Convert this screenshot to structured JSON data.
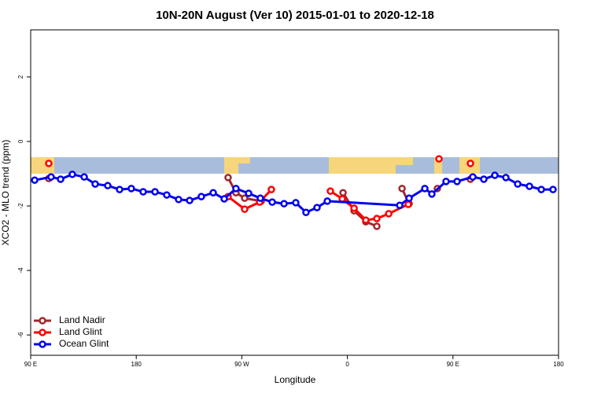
{
  "chart_data": {
    "type": "line",
    "title": "10N-20N August (Ver 10)   2015-01-01 to 2020-12-18",
    "x_label": "Longitude",
    "y_label": "XCO2 - MLO trend (ppm)",
    "xlim": [
      90,
      540
    ],
    "ylim": [
      -6.63,
      3.46
    ],
    "xticks": [
      {
        "value": 90,
        "label": "90 E"
      },
      180,
      {
        "value": 270,
        "label": "90 W"
      },
      {
        "value": 360,
        "label": "0"
      },
      {
        "value": 450,
        "label": "90 E"
      },
      180
    ],
    "yticks": [
      -6,
      -4,
      -2,
      0,
      2
    ],
    "legend": "bottom-left",
    "series": [
      {
        "name": "Land Nadir",
        "color": "#a0282d",
        "x": [
          105.4,
          null,
          258.3,
          265,
          272.4,
          286.5,
          null,
          356.3,
          365.7,
          375.7,
          385.1,
          null,
          406.6,
          412.6,
          null,
          436.7,
          null,
          464.9
        ],
        "values": [
          -1.15,
          null,
          -1.12,
          -1.59,
          -1.76,
          -1.85,
          null,
          -1.59,
          -2.15,
          -2.49,
          -2.63,
          null,
          -1.46,
          -1.93,
          null,
          -1.46,
          null,
          -1.17
        ]
      },
      {
        "name": "Land Glint",
        "color": "#ff0000",
        "x": [
          105.4,
          null,
          258.3,
          272.4,
          285.2,
          295.2,
          null,
          345.5,
          355.6,
          365.7,
          375.7,
          385.1,
          395.2,
          411.9,
          null,
          438.1,
          null,
          464.9
        ],
        "values": [
          -0.68,
          null,
          -1.71,
          -2.1,
          -1.88,
          -1.49,
          null,
          -1.54,
          -1.78,
          -2.07,
          -2.44,
          -2.39,
          -2.24,
          -1.95,
          null,
          -0.54,
          null,
          -0.68
        ]
      },
      {
        "name": "Ocean Glint",
        "color": "#0000ee",
        "x": [
          93.4,
          107.4,
          115.5,
          125.5,
          135.6,
          145,
          155.7,
          165.8,
          175.8,
          185.9,
          196,
          206,
          216.1,
          225.5,
          235.5,
          245.6,
          255,
          265,
          275.8,
          285.8,
          295.9,
          306,
          316,
          324.7,
          334.1,
          342.9,
          404.6,
          412.6,
          426,
          432,
          444.1,
          453.5,
          466.9,
          476.3,
          485.7,
          495.1,
          505.2,
          515.2,
          525.3,
          535.3
        ],
        "values": [
          -1.2,
          -1.1,
          -1.17,
          -1.02,
          -1.1,
          -1.32,
          -1.37,
          -1.49,
          -1.46,
          -1.56,
          -1.56,
          -1.66,
          -1.8,
          -1.83,
          -1.71,
          -1.59,
          -1.78,
          -1.46,
          -1.61,
          -1.76,
          -1.88,
          -1.93,
          -1.9,
          -2.2,
          -2.05,
          -1.85,
          -1.98,
          -1.76,
          -1.46,
          -1.63,
          -1.24,
          -1.24,
          -1.1,
          -1.17,
          -1.05,
          -1.12,
          -1.32,
          -1.39,
          -1.49,
          -1.49
        ]
      }
    ]
  }
}
